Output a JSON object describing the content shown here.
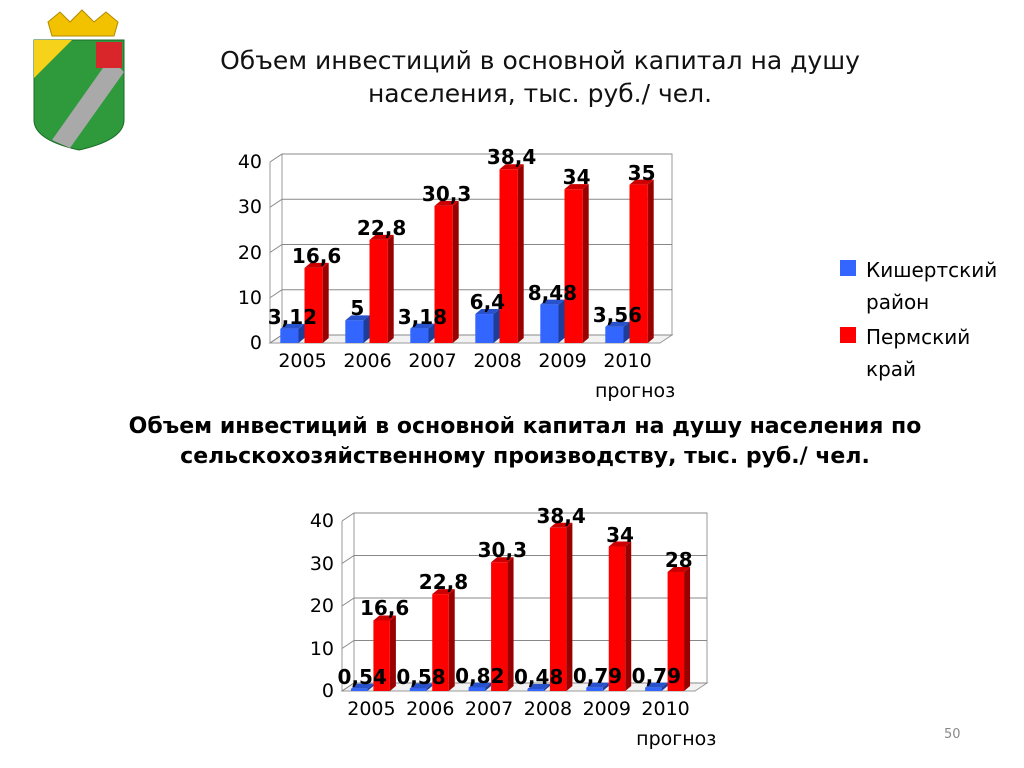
{
  "page_number": "50",
  "chart_data": [
    {
      "type": "bar",
      "title": "Объем инвестиций в основной капитал на душу населения,  тыс. руб./ чел.",
      "categories": [
        "2005",
        "2006",
        "2007",
        "2008",
        "2009",
        "2010 прогноз"
      ],
      "series": [
        {
          "name": "Кишертский район",
          "color": "#3366ff",
          "values": [
            3.12,
            5,
            3.18,
            6.4,
            8.48,
            3.56
          ],
          "value_labels": [
            "3,12",
            "5",
            "3,18",
            "6,4",
            "8,48",
            "3,56"
          ]
        },
        {
          "name": "Пермский край",
          "color": "#ff0000",
          "values": [
            16.6,
            22.8,
            30.3,
            38.4,
            34,
            35
          ],
          "value_labels": [
            "16,6",
            "22,8",
            "30,3",
            "38,4",
            "34",
            "35"
          ]
        }
      ],
      "ylim": [
        0,
        40
      ],
      "yticks": [
        0,
        10,
        20,
        30,
        40
      ],
      "grid": true,
      "legend": "right"
    },
    {
      "type": "bar",
      "title": "Объем инвестиций в основной капитал на душу населения по сельскохозяйственному производству, тыс. руб./ чел.",
      "categories": [
        "2005",
        "2006",
        "2007",
        "2008",
        "2009",
        "2010 прогноз"
      ],
      "series": [
        {
          "color": "#3366ff",
          "values": [
            0.54,
            0.58,
            0.82,
            0.48,
            0.79,
            0.79
          ],
          "value_labels": [
            "0,54",
            "0,58",
            "0,82",
            "0,48",
            "0,79",
            "0,79"
          ]
        },
        {
          "color": "#ff0000",
          "values": [
            16.6,
            22.8,
            30.3,
            38.4,
            34,
            28
          ],
          "value_labels": [
            "16,6",
            "22,8",
            "30,3",
            "38,4",
            "34",
            "28"
          ]
        }
      ],
      "ylim": [
        0,
        40
      ],
      "yticks": [
        0,
        10,
        20,
        30,
        40
      ],
      "grid": true
    }
  ]
}
